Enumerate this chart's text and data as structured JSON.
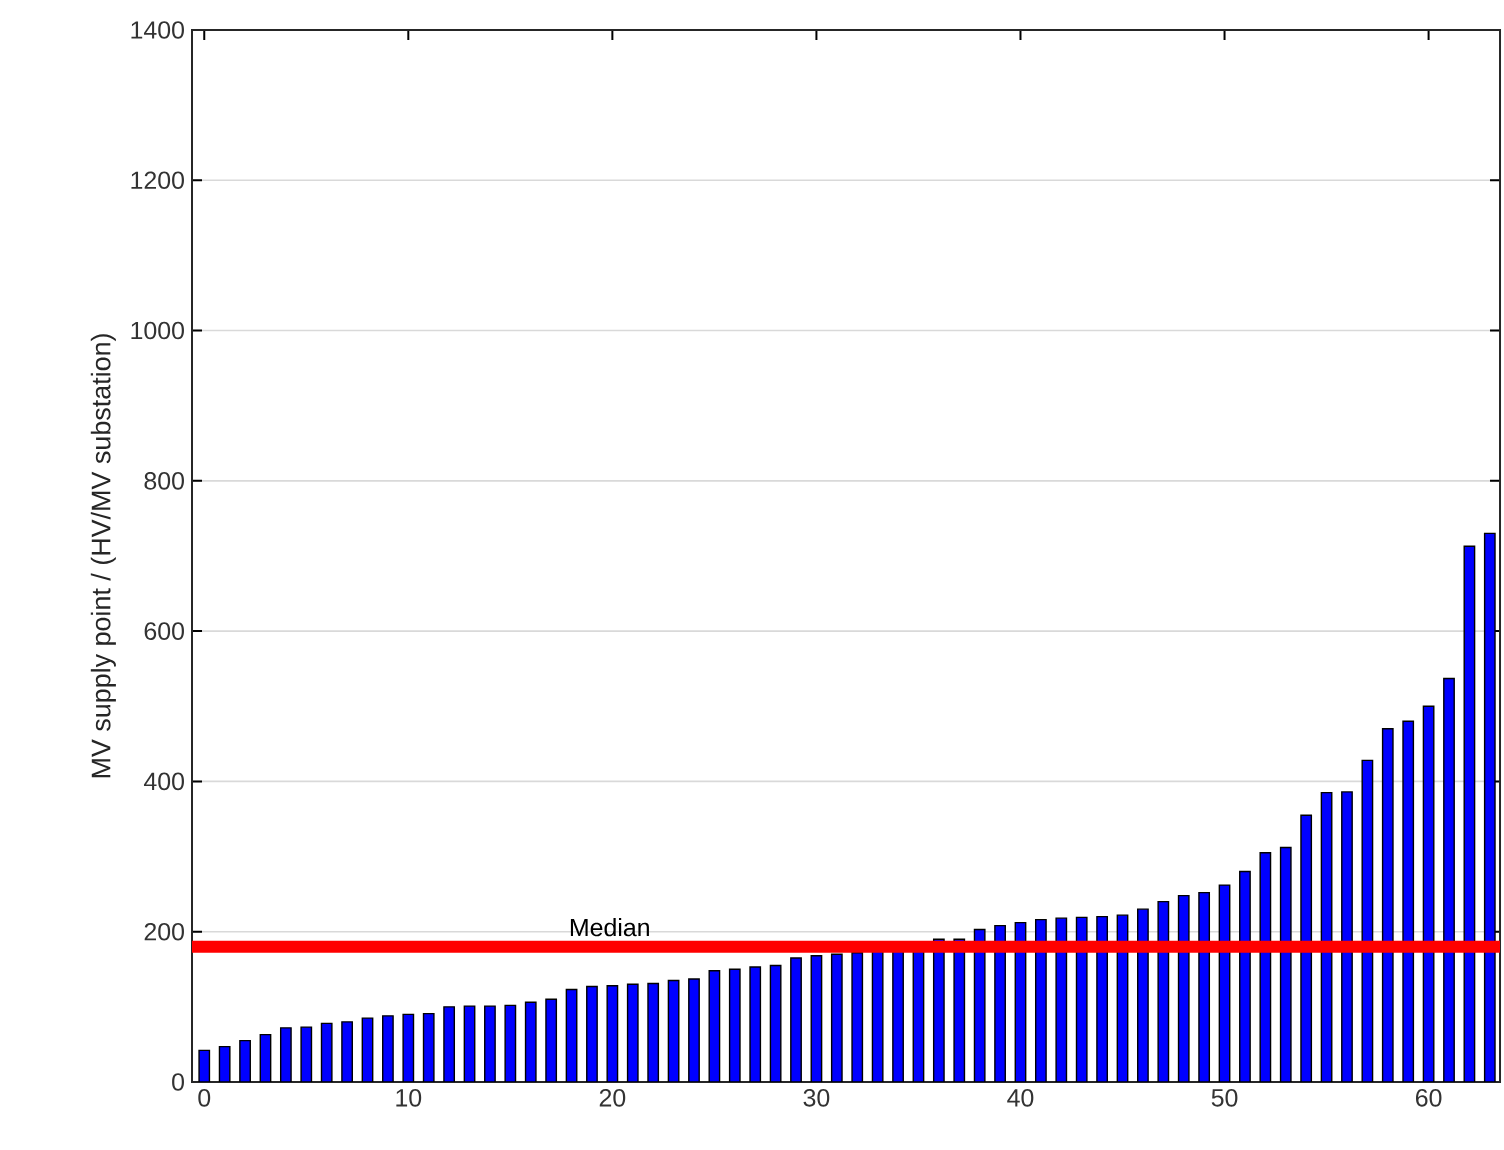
{
  "chart_data": {
    "type": "bar",
    "ylabel": "MV supply point / (HV/MV substation)",
    "x": [
      0,
      1,
      2,
      3,
      4,
      5,
      6,
      7,
      8,
      9,
      10,
      11,
      12,
      13,
      14,
      15,
      16,
      17,
      18,
      19,
      20,
      21,
      22,
      23,
      24,
      25,
      26,
      27,
      28,
      29,
      30,
      31,
      32,
      33,
      34,
      35,
      36,
      37,
      38,
      39,
      40,
      41,
      42,
      43,
      44,
      45,
      46,
      47,
      48,
      49,
      50,
      51,
      52,
      53,
      54,
      55,
      56,
      57,
      58,
      59,
      60,
      61,
      62,
      63
    ],
    "values": [
      42,
      47,
      55,
      63,
      72,
      73,
      78,
      80,
      85,
      88,
      90,
      91,
      100,
      101,
      101,
      102,
      106,
      110,
      123,
      127,
      128,
      130,
      131,
      135,
      137,
      148,
      150,
      153,
      155,
      165,
      168,
      170,
      172,
      175,
      176,
      178,
      190,
      190,
      203,
      208,
      212,
      216,
      218,
      219,
      220,
      222,
      230,
      240,
      248,
      252,
      262,
      280,
      305,
      312,
      355,
      385,
      386,
      428,
      470,
      480,
      500,
      537,
      713,
      730
    ],
    "color": "#0000ff",
    "xlim": [
      -0.6,
      63.5
    ],
    "xticks": [
      0,
      10,
      20,
      30,
      40,
      50,
      60
    ],
    "ylim": [
      0,
      1400
    ],
    "yticks": [
      0,
      200,
      400,
      600,
      800,
      1000,
      1200,
      1400
    ],
    "grid": "y",
    "ref_lines": [
      {
        "axis": "y",
        "value": 180,
        "label": "Median",
        "color": "#ff0000"
      }
    ]
  }
}
